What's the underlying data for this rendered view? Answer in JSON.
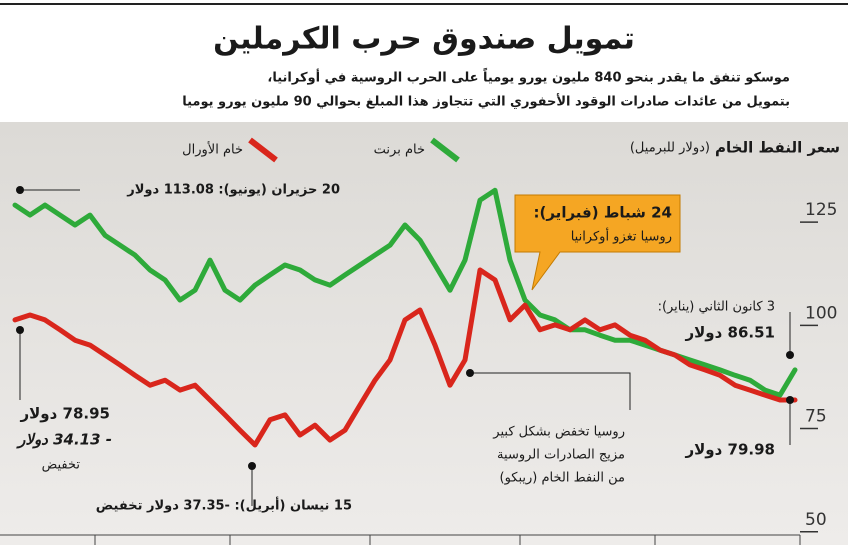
{
  "chart_data": {
    "type": "line",
    "title": "تمويل صندوق حرب الكرملين",
    "subtitle": [
      "موسكو تنفق ما يقدر بنحو 840 مليون يورو يومياً على الحرب الروسية في أوكرانيا،",
      "بتمويل من عائدات صادرات الوقود الأحفوري التي تتجاوز هذا المبلغ بحوالي 90 مليون يورو يوميا"
    ],
    "y_label": "سعر النفط الخام",
    "y_unit": "(دولار للبرميل)",
    "categories": [
      null,
      null,
      null,
      null,
      null,
      null,
      null,
      null,
      null,
      null,
      null,
      null,
      null,
      null,
      null,
      null,
      null,
      null,
      null,
      null,
      null,
      null,
      null,
      null,
      null,
      null,
      null,
      null,
      null,
      null,
      null,
      null,
      null,
      null,
      null,
      null,
      null,
      null,
      null,
      null,
      null,
      null,
      null,
      null,
      null,
      null,
      null,
      null,
      null,
      null,
      null,
      null,
      null
    ],
    "series": [
      {
        "name": "خام برنت",
        "color": "#2eaa3a",
        "values": [
          126.2,
          123.8,
          126.2,
          123.8,
          121.4,
          123.8,
          118.9,
          116.5,
          114.1,
          110.5,
          108.1,
          103.2,
          105.6,
          112.9,
          105.6,
          103.2,
          106.8,
          109.3,
          111.7,
          110.5,
          108.1,
          106.8,
          109.3,
          111.7,
          114.1,
          116.5,
          121.4,
          117.7,
          111.7,
          105.6,
          112.9,
          127.4,
          129.8,
          112.9,
          103.2,
          99.6,
          98.4,
          96.0,
          96.0,
          94.7,
          93.5,
          93.5,
          92.3,
          91.1,
          89.9,
          88.7,
          87.5,
          86.3,
          85.0,
          83.8,
          81.4,
          80.2,
          86.3
        ]
      },
      {
        "name": "خام الأورال",
        "color": "#d9261c",
        "values": [
          98.4,
          99.6,
          98.4,
          96.0,
          93.5,
          92.3,
          89.9,
          87.5,
          85.0,
          82.6,
          83.8,
          81.4,
          82.6,
          79.0,
          75.4,
          71.7,
          68.1,
          74.2,
          75.4,
          70.5,
          72.9,
          69.3,
          71.7,
          77.8,
          83.8,
          88.7,
          98.4,
          100.8,
          92.3,
          82.6,
          88.7,
          110.5,
          108.1,
          98.4,
          102.0,
          96.0,
          97.2,
          96.0,
          98.4,
          96.0,
          97.2,
          94.7,
          93.5,
          91.1,
          89.9,
          87.5,
          86.3,
          85.0,
          82.6,
          81.4,
          80.2,
          79.0,
          79.0
        ]
      }
    ],
    "ylim": [
      45.1,
      144.4
    ],
    "yticks": [
      50,
      75,
      100,
      125
    ],
    "annotations": {
      "june": "20 حزيران (يونيو): 113.08 دولار",
      "invasion": [
        "24 شباط (فبراير):",
        "روسيا تغزو أوكرانيا"
      ],
      "january": [
        "3 كانون الثاني (يناير):",
        "86.51 دولار"
      ],
      "jan_urals": "79.98 دولار",
      "left": [
        "78.95 دولار",
        "- 34.13 دولار",
        "تخفيض"
      ],
      "april": "15 نيسان (أبريل): -37.35 دولار تخفيض",
      "rebco": [
        "روسيا تخفض بشكل كبير",
        "مزيج الصادرات الروسية",
        "من النفط الخام (ريبكو)"
      ]
    }
  }
}
